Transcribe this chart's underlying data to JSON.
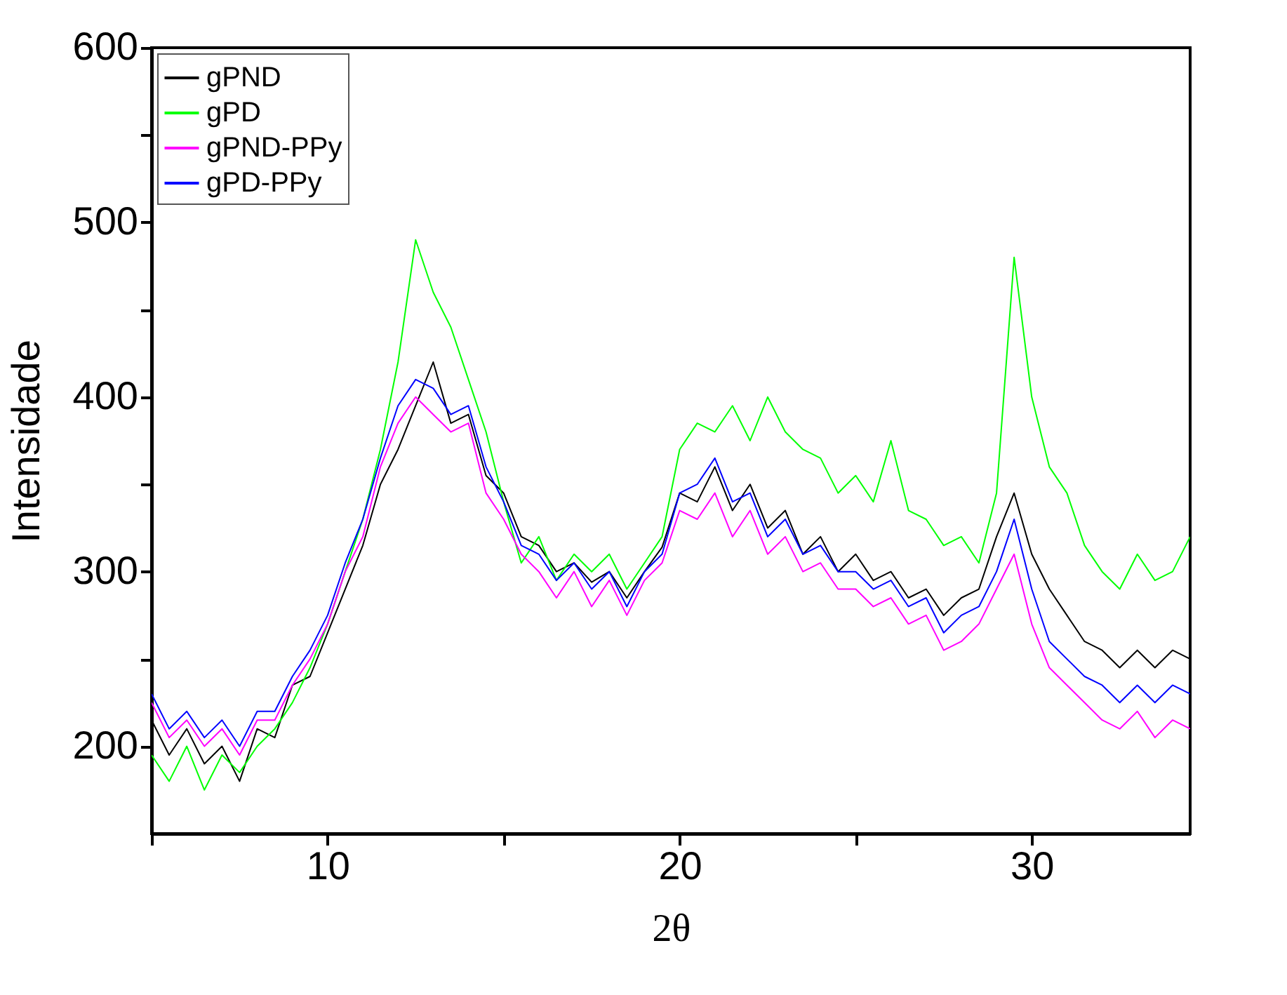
{
  "chart_data": {
    "type": "line",
    "xlabel": "2θ",
    "ylabel": "Intensidade",
    "xlim": [
      5,
      34.5
    ],
    "ylim": [
      150,
      600
    ],
    "xticks": [
      {
        "value": 5,
        "label": null
      },
      10,
      {
        "value": 15,
        "label": null
      },
      20,
      {
        "value": 25,
        "label": null
      },
      30
    ],
    "yticks": [
      200,
      {
        "value": 250,
        "label": null
      },
      300,
      {
        "value": 350,
        "label": null
      },
      400,
      {
        "value": 450,
        "label": null
      },
      500,
      {
        "value": 550,
        "label": null
      },
      600
    ],
    "grid": false,
    "legend": "top left",
    "line_style": "solid",
    "marker": "none",
    "x": [
      5,
      5.5,
      6,
      6.5,
      7,
      7.5,
      8,
      8.5,
      9,
      9.5,
      10,
      10.5,
      11,
      11.5,
      12,
      12.5,
      13,
      13.5,
      14,
      14.5,
      15,
      15.5,
      16,
      16.5,
      17,
      17.5,
      18,
      18.5,
      19,
      19.5,
      20,
      20.5,
      21,
      21.5,
      22,
      22.5,
      23,
      23.5,
      24,
      24.5,
      25,
      25.5,
      26,
      26.5,
      27,
      27.5,
      28,
      28.5,
      29,
      29.5,
      30,
      30.5,
      31,
      31.5,
      32,
      32.5,
      33,
      33.5,
      34,
      34.5
    ],
    "series": [
      {
        "name": "gPND",
        "color": "#000000",
        "values": [
          215,
          195,
          210,
          190,
          200,
          180,
          210,
          205,
          235,
          240,
          265,
          290,
          315,
          350,
          370,
          395,
          420,
          385,
          390,
          355,
          345,
          320,
          315,
          300,
          305,
          294,
          300,
          285,
          300,
          314,
          345,
          340,
          360,
          335,
          350,
          325,
          335,
          310,
          320,
          300,
          310,
          295,
          300,
          285,
          290,
          275,
          285,
          290,
          320,
          345,
          310,
          290,
          275,
          260,
          255,
          245,
          255,
          245,
          255,
          250
        ]
      },
      {
        "name": "gPD",
        "color": "#00ff00",
        "values": [
          195,
          180,
          200,
          175,
          195,
          185,
          200,
          210,
          225,
          245,
          270,
          300,
          330,
          370,
          420,
          490,
          460,
          440,
          410,
          380,
          340,
          305,
          320,
          295,
          310,
          300,
          310,
          290,
          305,
          320,
          370,
          385,
          380,
          395,
          375,
          400,
          380,
          370,
          365,
          345,
          355,
          340,
          375,
          335,
          330,
          315,
          320,
          305,
          345,
          480,
          400,
          360,
          345,
          315,
          300,
          290,
          310,
          295,
          300,
          320
        ]
      },
      {
        "name": "gPND-PPy",
        "color": "#ff00ff",
        "values": [
          225,
          205,
          215,
          200,
          210,
          195,
          215,
          215,
          235,
          250,
          270,
          300,
          320,
          360,
          385,
          400,
          390,
          380,
          385,
          345,
          330,
          310,
          300,
          285,
          300,
          280,
          295,
          275,
          295,
          305,
          335,
          330,
          345,
          320,
          335,
          310,
          320,
          300,
          305,
          290,
          290,
          280,
          285,
          270,
          275,
          255,
          260,
          270,
          290,
          310,
          270,
          245,
          235,
          225,
          215,
          210,
          220,
          205,
          215,
          210
        ]
      },
      {
        "name": "gPD-PPy",
        "color": "#0000ff",
        "values": [
          230,
          210,
          220,
          205,
          215,
          200,
          220,
          220,
          240,
          255,
          275,
          305,
          330,
          365,
          395,
          410,
          405,
          390,
          395,
          360,
          340,
          315,
          310,
          295,
          305,
          290,
          300,
          280,
          300,
          310,
          345,
          350,
          365,
          340,
          345,
          320,
          330,
          310,
          315,
          300,
          300,
          290,
          295,
          280,
          285,
          265,
          275,
          280,
          300,
          330,
          290,
          260,
          250,
          240,
          235,
          225,
          235,
          225,
          235,
          230
        ]
      }
    ]
  }
}
